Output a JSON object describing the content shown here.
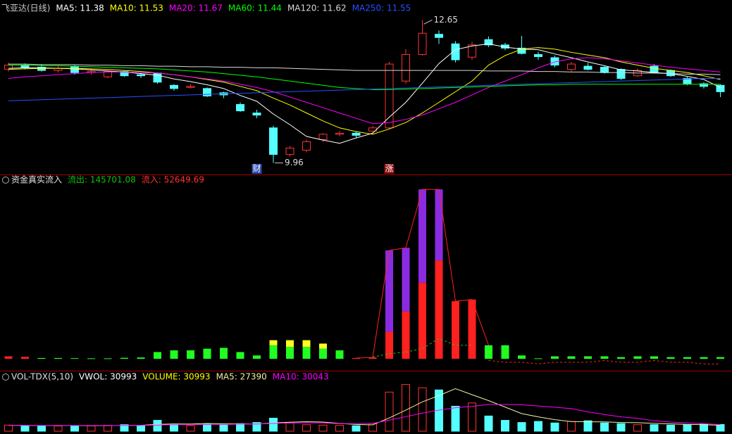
{
  "chart_data": [
    {
      "type": "candlestick",
      "title": "飞亚达(日线)",
      "title_color": "#c8c8c8",
      "up_color": "#ff3232",
      "down_color": "#54ffff",
      "ylim": [
        9.85,
        12.76
      ],
      "open": [
        11.72,
        11.8,
        11.76,
        11.7,
        11.78,
        11.66,
        11.58,
        11.68,
        11.62,
        11.65,
        11.42,
        11.38,
        11.36,
        11.28,
        11.06,
        10.9,
        10.62,
        10.12,
        10.2,
        10.4,
        10.5,
        10.52,
        10.56,
        10.62,
        11.5,
        12.0,
        12.38,
        12.2,
        11.95,
        12.28,
        12.18,
        12.12,
        12.0,
        11.94,
        11.72,
        11.78,
        11.76,
        11.72,
        11.6,
        11.78,
        11.7,
        11.55,
        11.45,
        11.42
      ],
      "high": [
        11.85,
        11.83,
        11.82,
        11.78,
        11.8,
        11.72,
        11.7,
        11.7,
        11.66,
        11.66,
        11.44,
        11.44,
        11.38,
        11.3,
        11.1,
        10.96,
        10.66,
        10.28,
        10.4,
        10.52,
        10.56,
        10.56,
        10.66,
        11.86,
        12.1,
        12.65,
        12.45,
        12.25,
        12.24,
        12.34,
        12.22,
        12.35,
        12.05,
        11.98,
        11.86,
        11.84,
        11.78,
        11.74,
        11.74,
        11.82,
        11.72,
        11.58,
        11.48,
        11.44
      ],
      "low": [
        11.68,
        11.72,
        11.68,
        11.66,
        11.62,
        11.62,
        11.55,
        11.58,
        11.56,
        11.45,
        11.32,
        11.36,
        11.2,
        11.18,
        10.92,
        10.8,
        9.96,
        10.08,
        10.16,
        10.36,
        10.46,
        10.44,
        10.52,
        10.6,
        11.45,
        11.98,
        12.2,
        11.85,
        11.9,
        12.14,
        12.08,
        12.0,
        11.9,
        11.76,
        11.68,
        11.7,
        11.64,
        11.52,
        11.58,
        11.64,
        11.58,
        11.42,
        11.36,
        11.2
      ],
      "close": [
        11.8,
        11.75,
        11.7,
        11.74,
        11.66,
        11.68,
        11.68,
        11.6,
        11.6,
        11.48,
        11.36,
        11.4,
        11.22,
        11.24,
        10.94,
        10.86,
        10.12,
        10.24,
        10.36,
        10.5,
        10.52,
        10.48,
        10.62,
        11.82,
        12.0,
        12.4,
        12.32,
        11.9,
        12.18,
        12.18,
        12.12,
        12.02,
        11.96,
        11.8,
        11.82,
        11.72,
        11.66,
        11.55,
        11.7,
        11.66,
        11.6,
        11.45,
        11.4,
        11.3
      ],
      "series": [
        {
          "name": "MA5: 11.38",
          "color": "#ffffff",
          "values": [
            11.74,
            11.75,
            11.75,
            11.74,
            11.73,
            11.71,
            11.69,
            11.67,
            11.64,
            11.61,
            11.54,
            11.49,
            11.43,
            11.36,
            11.23,
            11.12,
            10.88,
            10.68,
            10.46,
            10.39,
            10.33,
            10.43,
            10.52,
            10.82,
            11.1,
            11.46,
            11.83,
            12.09,
            12.16,
            12.2,
            12.14,
            12.1,
            12.09,
            12.01,
            11.94,
            11.86,
            11.79,
            11.71,
            11.69,
            11.66,
            11.64,
            11.59,
            11.53,
            11.38
          ]
        },
        {
          "name": "MA10: 11.53",
          "color": "#ffff00",
          "values": [
            11.72,
            11.73,
            11.74,
            11.74,
            11.74,
            11.73,
            11.72,
            11.7,
            11.68,
            11.65,
            11.62,
            11.58,
            11.53,
            11.48,
            11.4,
            11.32,
            11.18,
            11.05,
            10.9,
            10.75,
            10.62,
            10.55,
            10.5,
            10.6,
            10.72,
            10.9,
            11.1,
            11.3,
            11.5,
            11.8,
            11.98,
            12.1,
            12.13,
            12.1,
            12.04,
            11.99,
            11.94,
            11.86,
            11.8,
            11.74,
            11.7,
            11.66,
            11.6,
            11.53
          ]
        },
        {
          "name": "MA20: 11.67",
          "color": "#ff00ff",
          "values": [
            11.55,
            11.58,
            11.6,
            11.62,
            11.64,
            11.66,
            11.67,
            11.67,
            11.66,
            11.65,
            11.62,
            11.58,
            11.54,
            11.5,
            11.44,
            11.38,
            11.3,
            11.2,
            11.1,
            11.0,
            10.9,
            10.8,
            10.7,
            10.72,
            10.78,
            10.86,
            10.98,
            11.1,
            11.24,
            11.38,
            11.5,
            11.62,
            11.75,
            11.86,
            11.92,
            11.94,
            11.92,
            11.88,
            11.84,
            11.8,
            11.76,
            11.73,
            11.7,
            11.67
          ]
        },
        {
          "name": "MA60: 11.44",
          "color": "#00ff00",
          "values": [
            11.8,
            11.8,
            11.79,
            11.79,
            11.78,
            11.77,
            11.76,
            11.75,
            11.74,
            11.73,
            11.71,
            11.69,
            11.67,
            11.64,
            11.61,
            11.58,
            11.54,
            11.5,
            11.46,
            11.42,
            11.38,
            11.36,
            11.34,
            11.34,
            11.35,
            11.36,
            11.37,
            11.38,
            11.39,
            11.4,
            11.41,
            11.42,
            11.43,
            11.43,
            11.44,
            11.44,
            11.44,
            11.44,
            11.44,
            11.44,
            11.44,
            11.44,
            11.44,
            11.44
          ]
        },
        {
          "name": "MA120: 11.62",
          "color": "#d8d8d8",
          "values": [
            11.82,
            11.82,
            11.81,
            11.81,
            11.81,
            11.8,
            11.8,
            11.79,
            11.79,
            11.78,
            11.78,
            11.77,
            11.77,
            11.76,
            11.76,
            11.75,
            11.75,
            11.74,
            11.73,
            11.72,
            11.71,
            11.7,
            11.7,
            11.7,
            11.7,
            11.7,
            11.7,
            11.7,
            11.7,
            11.69,
            11.69,
            11.69,
            11.68,
            11.68,
            11.67,
            11.67,
            11.66,
            11.66,
            11.65,
            11.65,
            11.64,
            11.63,
            11.63,
            11.62
          ]
        },
        {
          "name": "MA250: 11.55",
          "color": "#2850ff",
          "values": [
            11.13,
            11.14,
            11.15,
            11.16,
            11.17,
            11.18,
            11.19,
            11.2,
            11.21,
            11.22,
            11.23,
            11.24,
            11.25,
            11.26,
            11.27,
            11.28,
            11.29,
            11.3,
            11.31,
            11.32,
            11.33,
            11.34,
            11.35,
            11.36,
            11.37,
            11.38,
            11.39,
            11.4,
            11.41,
            11.42,
            11.43,
            11.44,
            11.45,
            11.46,
            11.47,
            11.48,
            11.49,
            11.5,
            11.51,
            11.52,
            11.53,
            11.54,
            11.55,
            11.55
          ]
        }
      ],
      "annotations": [
        {
          "value": 12.65,
          "index": 25
        },
        {
          "value": 9.96,
          "index": 16
        }
      ],
      "events": [
        null,
        null,
        null,
        null,
        null,
        null,
        null,
        null,
        null,
        null,
        null,
        null,
        null,
        null,
        null,
        {
          "text": "财",
          "color": "#2a4aa8"
        },
        null,
        null,
        null,
        null,
        null,
        null,
        null,
        {
          "text": "涨",
          "color": "#8c1010"
        },
        null,
        null,
        null,
        null,
        null,
        null,
        null,
        null,
        null,
        null,
        null,
        null,
        null,
        null,
        null,
        null,
        null,
        null,
        null,
        null
      ]
    },
    {
      "type": "bar",
      "title": "资金真实流入",
      "title_color": "#e0e0e0",
      "ylim": [
        -7,
        103
      ],
      "legend": [
        {
          "text": "流出: 145701.08",
          "color": "#10c010"
        },
        {
          "text": "流入: 52649.69",
          "color": "#ff3232"
        }
      ],
      "bars": [
        {
          "values": [
            1.5,
            1.2,
            0.5,
            0.5,
            0.4,
            0.3,
            0.3,
            0.6,
            0.8,
            4,
            5,
            5,
            6,
            6.5,
            4,
            2,
            8,
            7,
            7,
            6,
            5,
            0.5,
            0.8,
            16,
            28,
            45,
            58,
            34,
            35,
            8,
            8,
            2,
            0.3,
            1.5,
            1.5,
            1.5,
            1.5,
            1,
            1.5,
            1.5,
            1,
            1,
            1,
            1
          ],
          "colors": [
            "#ff2020",
            "#ff2020",
            "#20ff20",
            "#20ff20",
            "#20ff20",
            "#20ff20",
            "#20ff20",
            "#20ff20",
            "#20ff20",
            "#20ff20",
            "#20ff20",
            "#20ff20",
            "#20ff20",
            "#20ff20",
            "#20ff20",
            "#20ff20",
            "#20ff20",
            "#20ff20",
            "#20ff20",
            "#20ff20",
            "#20ff20",
            "#ff2020",
            "#ff2020",
            "#ff2020",
            "#ff2020",
            "#ff2020",
            "#ff2020",
            "#ff2020",
            "#ff2020",
            "#20ff20",
            "#20ff20",
            "#20ff20",
            "#20ff20",
            "#20ff20",
            "#20ff20",
            "#20ff20",
            "#20ff20",
            "#20ff20",
            "#20ff20",
            "#20ff20",
            "#20ff20",
            "#20ff20",
            "#20ff20",
            "#20ff20"
          ]
        },
        {
          "color": "#ffff20",
          "values": [
            null,
            null,
            null,
            null,
            null,
            null,
            null,
            null,
            null,
            null,
            null,
            null,
            null,
            null,
            null,
            null,
            3,
            4,
            4,
            3,
            null,
            null,
            null,
            null,
            null,
            null,
            null,
            null,
            null,
            null,
            null,
            null,
            null,
            null,
            null,
            null,
            null,
            null,
            null,
            null,
            null,
            null,
            null,
            null
          ]
        },
        {
          "color": "#8a2be2",
          "values": [
            null,
            null,
            null,
            null,
            null,
            null,
            null,
            null,
            null,
            null,
            null,
            null,
            null,
            null,
            null,
            null,
            null,
            null,
            null,
            null,
            null,
            null,
            null,
            48,
            37.5,
            55,
            42,
            null,
            null,
            null,
            null,
            null,
            null,
            null,
            null,
            null,
            null,
            null,
            null,
            null,
            null,
            null,
            null,
            null
          ]
        }
      ],
      "lines": [
        {
          "color": "#ff2020",
          "values": [
            null,
            null,
            null,
            null,
            null,
            null,
            null,
            null,
            null,
            null,
            null,
            null,
            null,
            null,
            null,
            null,
            null,
            null,
            null,
            null,
            null,
            0.5,
            0.8,
            64,
            65.5,
            100,
            100,
            34,
            35,
            8,
            null,
            null,
            null,
            null,
            null,
            null,
            null,
            null,
            null,
            null,
            null,
            null,
            null,
            null
          ]
        },
        {
          "color": "#20c020",
          "dash": true,
          "values": [
            null,
            null,
            null,
            null,
            null,
            null,
            null,
            null,
            null,
            null,
            null,
            null,
            null,
            null,
            null,
            null,
            null,
            null,
            null,
            null,
            null,
            null,
            1,
            3,
            4,
            6,
            12,
            8,
            8,
            null,
            null,
            null,
            null,
            null,
            null,
            null,
            null,
            null,
            null,
            null,
            null,
            null,
            null,
            null
          ]
        },
        {
          "color": "#ff2020",
          "dash": true,
          "values": [
            null,
            null,
            null,
            null,
            null,
            null,
            null,
            null,
            null,
            null,
            null,
            null,
            null,
            null,
            null,
            null,
            null,
            null,
            null,
            null,
            null,
            null,
            null,
            null,
            null,
            null,
            null,
            null,
            null,
            -1,
            -2,
            -2,
            -3,
            -2,
            -2,
            -2,
            -1,
            -2,
            -2,
            -1,
            -2,
            -2,
            -3,
            -3
          ]
        }
      ]
    },
    {
      "type": "volume",
      "title": "VOL-TDX(5,10)",
      "title_color": "#e0e0e0",
      "up_color": "#ff3232",
      "down_color": "#54ffff",
      "ylim": [
        0,
        230000
      ],
      "legend": [
        {
          "text": "VWOL: 30993",
          "color": "#ffffff"
        },
        {
          "text": "VOLUME: 30993",
          "color": "#ffff00"
        }
      ],
      "values": [
        28000,
        25000,
        26000,
        24000,
        26000,
        25000,
        27000,
        30000,
        26000,
        50000,
        33000,
        26000,
        33000,
        28000,
        35000,
        40000,
        60000,
        38000,
        30000,
        28000,
        27000,
        25000,
        35000,
        180000,
        215000,
        200000,
        190000,
        115000,
        130000,
        70000,
        50000,
        40000,
        45000,
        38000,
        45000,
        48000,
        38000,
        35000,
        30000,
        30000,
        28000,
        30000,
        32000,
        30993
      ],
      "series": [
        {
          "name": "MA5: 27390",
          "color": "#f0f0a0",
          "values": [
            27000,
            26500,
            26000,
            26000,
            25800,
            25200,
            25600,
            26400,
            27000,
            31600,
            33200,
            33000,
            35600,
            34000,
            34200,
            32400,
            38200,
            41200,
            43600,
            42200,
            35600,
            31000,
            29000,
            61000,
            97000,
            135000,
            164000,
            196000,
            168000,
            141000,
            111000,
            81000,
            66000,
            53000,
            44000,
            43200,
            42800,
            40200,
            39200,
            36200,
            33800,
            31000,
            29800,
            27390
          ]
        },
        {
          "name": "MA10: 30043",
          "color": "#ff00ff",
          "values": [
            27000,
            26800,
            26500,
            26300,
            26200,
            26000,
            26000,
            26200,
            26400,
            28300,
            30000,
            30100,
            31200,
            31000,
            32900,
            32800,
            36000,
            37600,
            39000,
            38200,
            35000,
            34500,
            35800,
            51000,
            67000,
            83000,
            97000,
            108000,
            114000,
            123000,
            123000,
            122000,
            116000,
            110000,
            104000,
            89000,
            77000,
            66000,
            59000,
            48000,
            42000,
            38000,
            35000,
            30043
          ]
        }
      ]
    }
  ]
}
